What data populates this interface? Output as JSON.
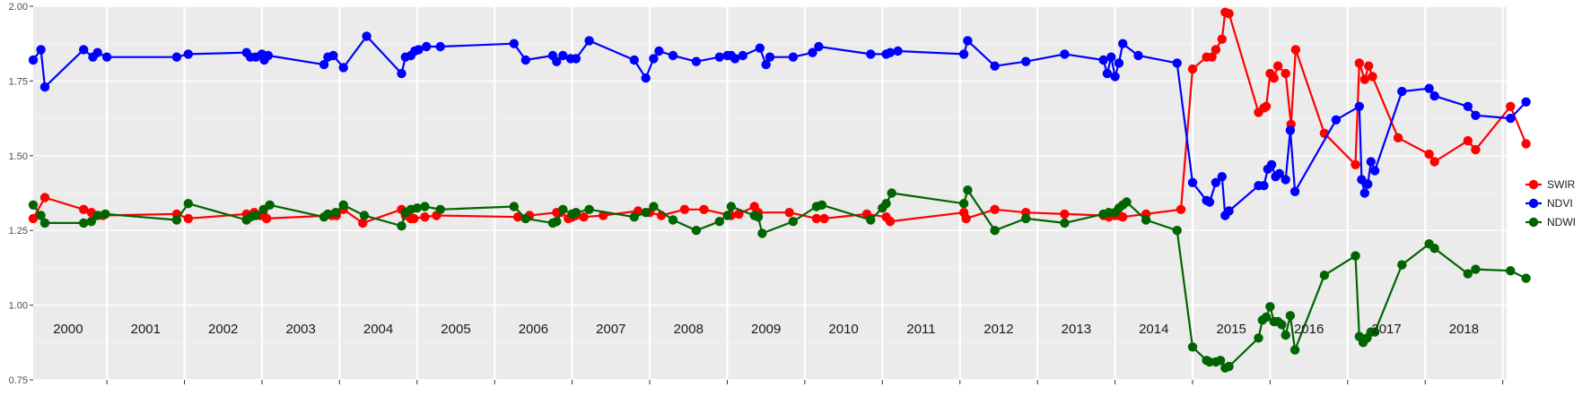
{
  "chart_data": {
    "type": "line",
    "x_unit": "year",
    "x_range": [
      1999.55,
      2018.55
    ],
    "ylim": [
      0.75,
      2.0
    ],
    "y_ticks": [
      "0.75",
      "1.00",
      "1.25",
      "1.50",
      "1.75",
      "2.00"
    ],
    "year_labels": [
      "2000",
      "2001",
      "2002",
      "2003",
      "2004",
      "2005",
      "2006",
      "2007",
      "2008",
      "2009",
      "2010",
      "2011",
      "2012",
      "2013",
      "2014",
      "2015",
      "2016",
      "2017",
      "2018"
    ],
    "grid": true,
    "legend_position": "right",
    "series": [
      {
        "name": "SWIR",
        "color": "#ff0000",
        "points": [
          [
            1999.55,
            1.29
          ],
          [
            1999.7,
            1.36
          ],
          [
            2000.2,
            1.32
          ],
          [
            2000.3,
            1.31
          ],
          [
            2000.35,
            1.3
          ],
          [
            2000.45,
            1.3
          ],
          [
            2001.4,
            1.305
          ],
          [
            2001.55,
            1.29
          ],
          [
            2002.3,
            1.305
          ],
          [
            2002.4,
            1.31
          ],
          [
            2002.48,
            1.3
          ],
          [
            2002.52,
            1.3
          ],
          [
            2002.56,
            1.29
          ],
          [
            2003.4,
            1.3
          ],
          [
            2003.46,
            1.3
          ],
          [
            2003.55,
            1.32
          ],
          [
            2003.8,
            1.275
          ],
          [
            2004.3,
            1.32
          ],
          [
            2004.35,
            1.3
          ],
          [
            2004.42,
            1.29
          ],
          [
            2004.46,
            1.29
          ],
          [
            2004.6,
            1.295
          ],
          [
            2004.75,
            1.3
          ],
          [
            2005.8,
            1.295
          ],
          [
            2005.95,
            1.3
          ],
          [
            2006.3,
            1.31
          ],
          [
            2006.35,
            1.31
          ],
          [
            2006.45,
            1.29
          ],
          [
            2006.5,
            1.295
          ],
          [
            2006.55,
            1.3
          ],
          [
            2006.65,
            1.295
          ],
          [
            2006.9,
            1.3
          ],
          [
            2007.35,
            1.315
          ],
          [
            2007.5,
            1.31
          ],
          [
            2007.65,
            1.3
          ],
          [
            2007.95,
            1.32
          ],
          [
            2008.2,
            1.32
          ],
          [
            2008.55,
            1.3
          ],
          [
            2008.65,
            1.305
          ],
          [
            2008.85,
            1.33
          ],
          [
            2008.9,
            1.31
          ],
          [
            2009.3,
            1.31
          ],
          [
            2009.65,
            1.29
          ],
          [
            2009.75,
            1.29
          ],
          [
            2010.3,
            1.305
          ],
          [
            2010.55,
            1.295
          ],
          [
            2010.6,
            1.28
          ],
          [
            2011.55,
            1.31
          ],
          [
            2011.58,
            1.29
          ],
          [
            2011.95,
            1.32
          ],
          [
            2012.35,
            1.31
          ],
          [
            2012.85,
            1.305
          ],
          [
            2013.35,
            1.3
          ],
          [
            2013.42,
            1.295
          ],
          [
            2013.5,
            1.3
          ],
          [
            2013.55,
            1.3
          ],
          [
            2013.6,
            1.295
          ],
          [
            2013.9,
            1.305
          ],
          [
            2014.35,
            1.32
          ],
          [
            2014.5,
            1.79
          ],
          [
            2014.68,
            1.83
          ],
          [
            2014.75,
            1.83
          ],
          [
            2014.8,
            1.855
          ],
          [
            2014.88,
            1.89
          ],
          [
            2014.92,
            1.98
          ],
          [
            2014.97,
            1.975
          ],
          [
            2015.35,
            1.645
          ],
          [
            2015.42,
            1.66
          ],
          [
            2015.45,
            1.665
          ],
          [
            2015.5,
            1.775
          ],
          [
            2015.55,
            1.76
          ],
          [
            2015.6,
            1.8
          ],
          [
            2015.7,
            1.775
          ],
          [
            2015.77,
            1.605
          ],
          [
            2015.83,
            1.855
          ],
          [
            2016.2,
            1.575
          ],
          [
            2016.6,
            1.47
          ],
          [
            2016.65,
            1.81
          ],
          [
            2016.72,
            1.755
          ],
          [
            2016.77,
            1.8
          ],
          [
            2016.82,
            1.765
          ],
          [
            2017.15,
            1.56
          ],
          [
            2017.55,
            1.505
          ],
          [
            2017.62,
            1.48
          ],
          [
            2018.05,
            1.55
          ],
          [
            2018.15,
            1.52
          ],
          [
            2018.6,
            1.665
          ],
          [
            2018.8,
            1.54
          ]
        ]
      },
      {
        "name": "NDVI",
        "color": "#0000ff",
        "points": [
          [
            1999.55,
            1.82
          ],
          [
            1999.65,
            1.855
          ],
          [
            1999.7,
            1.73
          ],
          [
            2000.2,
            1.855
          ],
          [
            2000.32,
            1.83
          ],
          [
            2000.38,
            1.845
          ],
          [
            2000.5,
            1.83
          ],
          [
            2001.4,
            1.83
          ],
          [
            2001.55,
            1.84
          ],
          [
            2002.3,
            1.845
          ],
          [
            2002.35,
            1.83
          ],
          [
            2002.42,
            1.83
          ],
          [
            2002.5,
            1.84
          ],
          [
            2002.53,
            1.82
          ],
          [
            2002.58,
            1.835
          ],
          [
            2003.3,
            1.805
          ],
          [
            2003.35,
            1.83
          ],
          [
            2003.42,
            1.835
          ],
          [
            2003.55,
            1.795
          ],
          [
            2003.85,
            1.9
          ],
          [
            2004.3,
            1.775
          ],
          [
            2004.35,
            1.83
          ],
          [
            2004.42,
            1.835
          ],
          [
            2004.47,
            1.85
          ],
          [
            2004.52,
            1.855
          ],
          [
            2004.62,
            1.865
          ],
          [
            2004.8,
            1.865
          ],
          [
            2005.75,
            1.875
          ],
          [
            2005.9,
            1.82
          ],
          [
            2006.25,
            1.835
          ],
          [
            2006.3,
            1.815
          ],
          [
            2006.38,
            1.835
          ],
          [
            2006.48,
            1.825
          ],
          [
            2006.55,
            1.825
          ],
          [
            2006.72,
            1.885
          ],
          [
            2007.3,
            1.82
          ],
          [
            2007.45,
            1.76
          ],
          [
            2007.55,
            1.825
          ],
          [
            2007.62,
            1.85
          ],
          [
            2007.8,
            1.835
          ],
          [
            2008.1,
            1.815
          ],
          [
            2008.4,
            1.83
          ],
          [
            2008.5,
            1.835
          ],
          [
            2008.55,
            1.835
          ],
          [
            2008.6,
            1.825
          ],
          [
            2008.7,
            1.835
          ],
          [
            2008.92,
            1.86
          ],
          [
            2009.0,
            1.805
          ],
          [
            2009.05,
            1.83
          ],
          [
            2009.35,
            1.83
          ],
          [
            2009.6,
            1.845
          ],
          [
            2009.68,
            1.865
          ],
          [
            2010.35,
            1.84
          ],
          [
            2010.55,
            1.84
          ],
          [
            2010.6,
            1.845
          ],
          [
            2010.7,
            1.85
          ],
          [
            2011.55,
            1.84
          ],
          [
            2011.6,
            1.885
          ],
          [
            2011.95,
            1.8
          ],
          [
            2012.35,
            1.815
          ],
          [
            2012.85,
            1.84
          ],
          [
            2013.35,
            1.82
          ],
          [
            2013.4,
            1.775
          ],
          [
            2013.45,
            1.83
          ],
          [
            2013.5,
            1.765
          ],
          [
            2013.55,
            1.81
          ],
          [
            2013.6,
            1.875
          ],
          [
            2013.8,
            1.835
          ],
          [
            2014.3,
            1.81
          ],
          [
            2014.5,
            1.41
          ],
          [
            2014.68,
            1.35
          ],
          [
            2014.72,
            1.345
          ],
          [
            2014.8,
            1.41
          ],
          [
            2014.88,
            1.43
          ],
          [
            2014.92,
            1.3
          ],
          [
            2014.97,
            1.315
          ],
          [
            2015.35,
            1.4
          ],
          [
            2015.42,
            1.4
          ],
          [
            2015.47,
            1.455
          ],
          [
            2015.52,
            1.47
          ],
          [
            2015.57,
            1.43
          ],
          [
            2015.62,
            1.44
          ],
          [
            2015.7,
            1.42
          ],
          [
            2015.76,
            1.585
          ],
          [
            2015.82,
            1.38
          ],
          [
            2016.35,
            1.62
          ],
          [
            2016.65,
            1.665
          ],
          [
            2016.68,
            1.42
          ],
          [
            2016.72,
            1.375
          ],
          [
            2016.76,
            1.405
          ],
          [
            2016.8,
            1.48
          ],
          [
            2016.85,
            1.45
          ],
          [
            2017.2,
            1.715
          ],
          [
            2017.55,
            1.725
          ],
          [
            2017.62,
            1.7
          ],
          [
            2018.05,
            1.665
          ],
          [
            2018.15,
            1.635
          ],
          [
            2018.6,
            1.625
          ],
          [
            2018.8,
            1.68
          ]
        ]
      },
      {
        "name": "NDWI",
        "color": "#006400",
        "points": [
          [
            1999.55,
            1.335
          ],
          [
            1999.65,
            1.3
          ],
          [
            1999.7,
            1.275
          ],
          [
            2000.2,
            1.275
          ],
          [
            2000.3,
            1.28
          ],
          [
            2000.38,
            1.3
          ],
          [
            2000.48,
            1.305
          ],
          [
            2001.4,
            1.285
          ],
          [
            2001.55,
            1.34
          ],
          [
            2002.3,
            1.285
          ],
          [
            2002.35,
            1.295
          ],
          [
            2002.42,
            1.3
          ],
          [
            2002.52,
            1.32
          ],
          [
            2002.6,
            1.335
          ],
          [
            2003.3,
            1.295
          ],
          [
            2003.35,
            1.305
          ],
          [
            2003.45,
            1.31
          ],
          [
            2003.55,
            1.335
          ],
          [
            2003.82,
            1.3
          ],
          [
            2004.3,
            1.265
          ],
          [
            2004.35,
            1.31
          ],
          [
            2004.42,
            1.32
          ],
          [
            2004.5,
            1.325
          ],
          [
            2004.6,
            1.33
          ],
          [
            2004.8,
            1.32
          ],
          [
            2005.75,
            1.33
          ],
          [
            2005.9,
            1.29
          ],
          [
            2006.25,
            1.275
          ],
          [
            2006.3,
            1.28
          ],
          [
            2006.38,
            1.32
          ],
          [
            2006.5,
            1.305
          ],
          [
            2006.55,
            1.31
          ],
          [
            2006.72,
            1.32
          ],
          [
            2007.3,
            1.295
          ],
          [
            2007.45,
            1.31
          ],
          [
            2007.55,
            1.33
          ],
          [
            2007.8,
            1.285
          ],
          [
            2008.1,
            1.25
          ],
          [
            2008.4,
            1.28
          ],
          [
            2008.5,
            1.3
          ],
          [
            2008.55,
            1.33
          ],
          [
            2008.85,
            1.3
          ],
          [
            2008.9,
            1.295
          ],
          [
            2008.95,
            1.24
          ],
          [
            2009.35,
            1.28
          ],
          [
            2009.65,
            1.33
          ],
          [
            2009.72,
            1.335
          ],
          [
            2010.35,
            1.285
          ],
          [
            2010.5,
            1.325
          ],
          [
            2010.55,
            1.34
          ],
          [
            2010.62,
            1.375
          ],
          [
            2011.55,
            1.34
          ],
          [
            2011.6,
            1.385
          ],
          [
            2011.95,
            1.25
          ],
          [
            2012.35,
            1.29
          ],
          [
            2012.85,
            1.275
          ],
          [
            2013.35,
            1.305
          ],
          [
            2013.42,
            1.31
          ],
          [
            2013.5,
            1.31
          ],
          [
            2013.55,
            1.325
          ],
          [
            2013.6,
            1.335
          ],
          [
            2013.65,
            1.345
          ],
          [
            2013.9,
            1.285
          ],
          [
            2014.3,
            1.25
          ],
          [
            2014.5,
            0.86
          ],
          [
            2014.68,
            0.815
          ],
          [
            2014.72,
            0.81
          ],
          [
            2014.8,
            0.81
          ],
          [
            2014.86,
            0.815
          ],
          [
            2014.92,
            0.79
          ],
          [
            2014.97,
            0.795
          ],
          [
            2015.35,
            0.89
          ],
          [
            2015.4,
            0.95
          ],
          [
            2015.45,
            0.96
          ],
          [
            2015.5,
            0.995
          ],
          [
            2015.55,
            0.945
          ],
          [
            2015.6,
            0.945
          ],
          [
            2015.65,
            0.935
          ],
          [
            2015.7,
            0.9
          ],
          [
            2015.76,
            0.965
          ],
          [
            2015.82,
            0.85
          ],
          [
            2016.2,
            1.1
          ],
          [
            2016.6,
            1.165
          ],
          [
            2016.65,
            0.895
          ],
          [
            2016.7,
            0.875
          ],
          [
            2016.75,
            0.89
          ],
          [
            2016.8,
            0.91
          ],
          [
            2016.85,
            0.91
          ],
          [
            2017.2,
            1.135
          ],
          [
            2017.55,
            1.205
          ],
          [
            2017.62,
            1.19
          ],
          [
            2018.05,
            1.105
          ],
          [
            2018.15,
            1.12
          ],
          [
            2018.6,
            1.115
          ],
          [
            2018.8,
            1.09
          ]
        ]
      }
    ]
  }
}
